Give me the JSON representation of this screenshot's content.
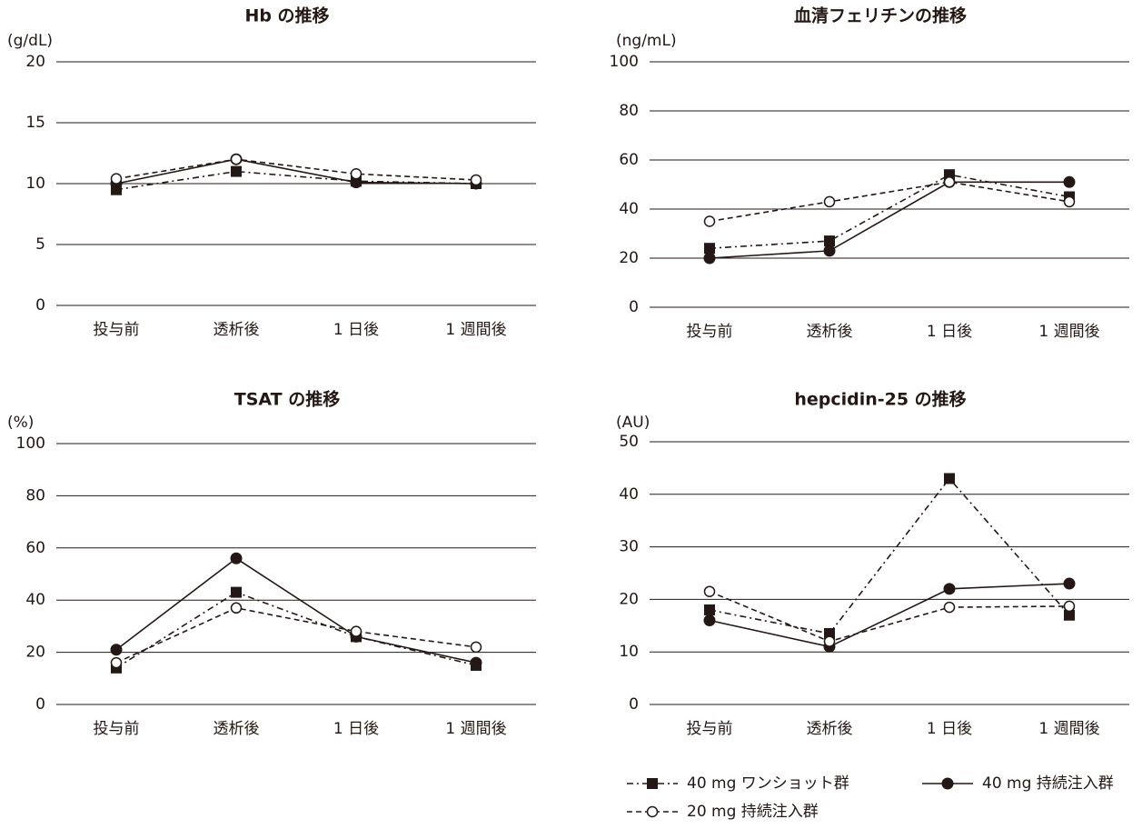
{
  "chart_data": [
    {
      "type": "line",
      "title": "Hb の推移",
      "y_label": "(g/dL)",
      "categories": [
        "投与前",
        "透析後",
        "1 日後",
        "1 週間後"
      ],
      "ylim": [
        0,
        20
      ],
      "yticks": [
        0,
        5,
        10,
        15,
        20
      ],
      "grid": true,
      "series": [
        {
          "color": "#231815",
          "line_style": "dashdot",
          "marker": "square",
          "values": [
            9.5,
            11,
            10.2,
            10
          ]
        },
        {
          "color": "#231815",
          "line_style": "solid",
          "marker": "circle",
          "values": [
            10,
            12,
            10.1,
            10
          ]
        },
        {
          "color": "#231815",
          "line_style": "dashed",
          "marker": "open-circle",
          "values": [
            10.4,
            12,
            10.8,
            10.3
          ]
        }
      ]
    },
    {
      "type": "line",
      "title": "血清フェリチンの推移",
      "y_label": "(ng/mL)",
      "categories": [
        "投与前",
        "透析後",
        "1 日後",
        "1 週間後"
      ],
      "ylim": [
        0,
        100
      ],
      "yticks": [
        0,
        20,
        40,
        60,
        80,
        100
      ],
      "grid": true,
      "series": [
        {
          "color": "#231815",
          "line_style": "dashdot",
          "marker": "square",
          "values": [
            24,
            27,
            54,
            45
          ]
        },
        {
          "color": "#231815",
          "line_style": "solid",
          "marker": "circle",
          "values": [
            20,
            23,
            51,
            51
          ]
        },
        {
          "color": "#231815",
          "line_style": "dashed",
          "marker": "open-circle",
          "values": [
            35,
            43,
            51,
            43
          ]
        }
      ]
    },
    {
      "type": "line",
      "title": "TSAT の推移",
      "y_label": "(%)",
      "categories": [
        "投与前",
        "透析後",
        "1 日後",
        "1 週間後"
      ],
      "ylim": [
        0,
        100
      ],
      "yticks": [
        0,
        20,
        40,
        60,
        80,
        100
      ],
      "grid": true,
      "series": [
        {
          "color": "#231815",
          "line_style": "dashdot",
          "marker": "square",
          "values": [
            14,
            43,
            26,
            15
          ]
        },
        {
          "color": "#231815",
          "line_style": "solid",
          "marker": "circle",
          "values": [
            21,
            56,
            26,
            16
          ]
        },
        {
          "color": "#231815",
          "line_style": "dashed",
          "marker": "open-circle",
          "values": [
            16,
            37,
            28,
            22
          ]
        }
      ]
    },
    {
      "type": "line",
      "title": "hepcidin-25 の推移",
      "y_label": "(AU)",
      "categories": [
        "投与前",
        "透析後",
        "1 日後",
        "1 週間後"
      ],
      "ylim": [
        0,
        50
      ],
      "yticks": [
        0,
        10,
        20,
        30,
        40,
        50
      ],
      "grid": true,
      "series": [
        {
          "name": "40 mg ワンショット群",
          "color": "#231815",
          "line_style": "dashdot",
          "marker": "square",
          "values": [
            18,
            13.5,
            43,
            17
          ]
        },
        {
          "name": "40 mg 持続注入群",
          "color": "#231815",
          "line_style": "solid",
          "marker": "circle",
          "values": [
            16,
            11,
            22,
            23
          ]
        },
        {
          "name": "20 mg 持続注入群",
          "color": "#231815",
          "line_style": "dashed",
          "marker": "open-circle",
          "values": [
            21.5,
            12,
            18.5,
            18.7
          ]
        }
      ]
    }
  ]
}
